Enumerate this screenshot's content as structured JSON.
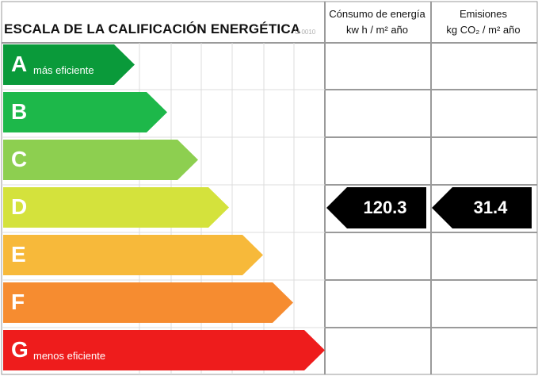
{
  "title": "ESCALA DE LA CALIFICACIÓN ENERGÉTICA",
  "code": "U-0010",
  "columns": {
    "consumo": {
      "line1": "Cónsumo de energía",
      "line2": "kw h / m² año"
    },
    "emisiones": {
      "line1": "Emisiones",
      "line2": "kg CO₂ / m² año"
    }
  },
  "ratings": [
    {
      "letter": "A",
      "description": "más eficiente",
      "color": "#0a9a3a"
    },
    {
      "letter": "B",
      "description": "",
      "color": "#1db84a"
    },
    {
      "letter": "C",
      "description": "",
      "color": "#8dcf50"
    },
    {
      "letter": "D",
      "description": "",
      "color": "#d4e23c"
    },
    {
      "letter": "E",
      "description": "",
      "color": "#f7b93a"
    },
    {
      "letter": "F",
      "description": "",
      "color": "#f68c30"
    },
    {
      "letter": "G",
      "description": "menos eficiente",
      "color": "#ee1c1c"
    }
  ],
  "current": {
    "rating": "D",
    "consumo": "120.3",
    "emisiones": "31.4",
    "marker_color": "#000000"
  }
}
